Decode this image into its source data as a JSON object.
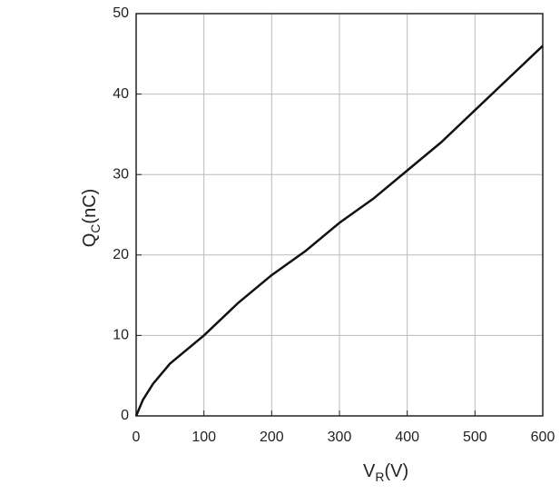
{
  "chart_data": {
    "type": "line",
    "x_label": {
      "symbol": "V",
      "subscript": "R",
      "unit": "(V)"
    },
    "y_label": {
      "symbol": "Q",
      "subscript": "C",
      "unit": "(nC)"
    },
    "series": [
      {
        "name": "QC",
        "color": "#111111",
        "x": [
          0,
          10,
          25,
          50,
          100,
          150,
          200,
          250,
          300,
          350,
          400,
          450,
          500,
          550,
          600
        ],
        "values": [
          0,
          2,
          4,
          6.5,
          10,
          14,
          17.5,
          20.5,
          24,
          27,
          30.5,
          34,
          38,
          42,
          46
        ]
      }
    ],
    "xlim": [
      0,
      600
    ],
    "xticks": [
      0,
      100,
      200,
      300,
      400,
      500,
      600
    ],
    "ylim": [
      0,
      50
    ],
    "yticks": [
      0,
      10,
      20,
      30,
      40,
      50
    ],
    "grid": true
  }
}
